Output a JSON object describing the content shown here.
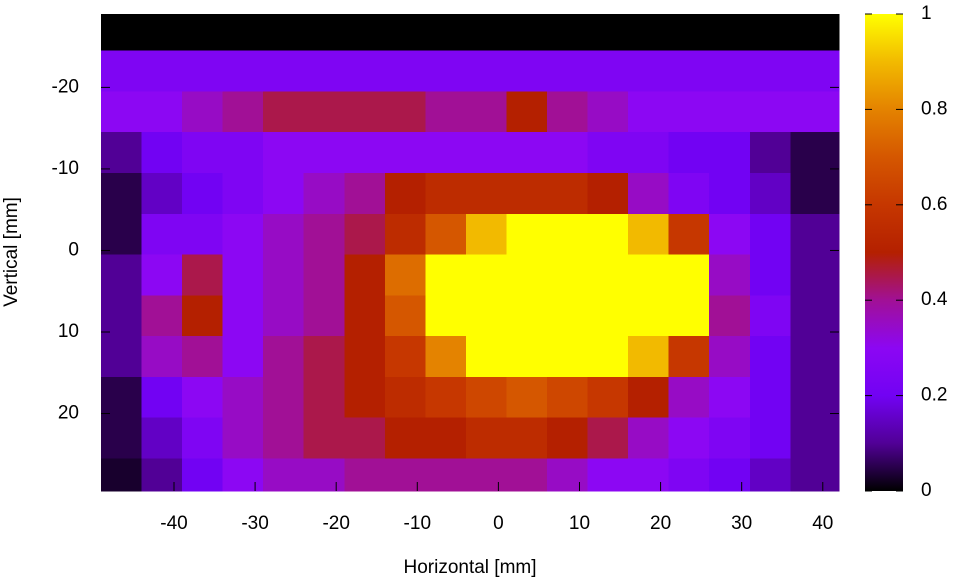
{
  "chart_data": {
    "type": "heatmap",
    "xlabel": "Horizontal [mm]",
    "ylabel": "Vertical [mm]",
    "x": [
      -46.5,
      -41.5,
      -36.5,
      -31.5,
      -26.5,
      -21.5,
      -16.5,
      -11.5,
      -6.5,
      -1.5,
      3.5,
      8.5,
      13.5,
      18.5,
      23.5,
      28.5,
      33.5,
      38.5
    ],
    "y": [
      -27,
      -22,
      -17,
      -12,
      -7,
      -2,
      3,
      8,
      13,
      18,
      23,
      28
    ],
    "z": [
      [
        0,
        0,
        0,
        0,
        0,
        0,
        0,
        0,
        0,
        0,
        0,
        0,
        0,
        0,
        0,
        0,
        0,
        0
      ],
      [
        0.25,
        0.25,
        0.25,
        0.25,
        0.25,
        0.25,
        0.25,
        0.25,
        0.25,
        0.25,
        0.25,
        0.25,
        0.25,
        0.25,
        0.25,
        0.25,
        0.25,
        0.25
      ],
      [
        0.3,
        0.3,
        0.35,
        0.4,
        0.45,
        0.45,
        0.45,
        0.45,
        0.4,
        0.4,
        0.5,
        0.4,
        0.35,
        0.3,
        0.3,
        0.3,
        0.3,
        0.3
      ],
      [
        0.1,
        0.2,
        0.25,
        0.25,
        0.3,
        0.3,
        0.3,
        0.3,
        0.3,
        0.3,
        0.3,
        0.3,
        0.25,
        0.25,
        0.2,
        0.2,
        0.1,
        0.05
      ],
      [
        0.05,
        0.15,
        0.2,
        0.25,
        0.3,
        0.35,
        0.4,
        0.5,
        0.55,
        0.55,
        0.55,
        0.55,
        0.5,
        0.35,
        0.25,
        0.2,
        0.15,
        0.05
      ],
      [
        0.05,
        0.25,
        0.25,
        0.3,
        0.35,
        0.4,
        0.45,
        0.55,
        0.7,
        0.9,
        1,
        1,
        1,
        0.9,
        0.6,
        0.3,
        0.2,
        0.1
      ],
      [
        0.1,
        0.3,
        0.45,
        0.3,
        0.35,
        0.4,
        0.5,
        0.75,
        1,
        1,
        1,
        1,
        1,
        1,
        1,
        0.35,
        0.2,
        0.1
      ],
      [
        0.1,
        0.4,
        0.5,
        0.3,
        0.35,
        0.4,
        0.5,
        0.7,
        1,
        1,
        1,
        1,
        1,
        1,
        1,
        0.4,
        0.25,
        0.1
      ],
      [
        0.1,
        0.35,
        0.4,
        0.3,
        0.4,
        0.45,
        0.5,
        0.6,
        0.8,
        1,
        1,
        1,
        1,
        0.9,
        0.6,
        0.35,
        0.2,
        0.1
      ],
      [
        0.05,
        0.2,
        0.3,
        0.35,
        0.4,
        0.45,
        0.5,
        0.55,
        0.6,
        0.65,
        0.7,
        0.65,
        0.6,
        0.5,
        0.35,
        0.3,
        0.2,
        0.1
      ],
      [
        0.05,
        0.15,
        0.25,
        0.35,
        0.4,
        0.45,
        0.45,
        0.5,
        0.5,
        0.55,
        0.55,
        0.5,
        0.45,
        0.35,
        0.3,
        0.25,
        0.2,
        0.1
      ],
      [
        0.03,
        0.1,
        0.2,
        0.3,
        0.35,
        0.35,
        0.4,
        0.4,
        0.4,
        0.4,
        0.4,
        0.35,
        0.3,
        0.3,
        0.25,
        0.2,
        0.15,
        0.1
      ]
    ],
    "xlim": [
      -49,
      42
    ],
    "xticks": [
      -40,
      -30,
      -20,
      -10,
      0,
      10,
      20,
      30,
      40
    ],
    "ylim": [
      -29,
      29.5
    ],
    "y_reversed": true,
    "yticks": [
      -20,
      -10,
      0,
      10,
      20
    ],
    "cblim": [
      0,
      1
    ],
    "cbticks": [
      0,
      0.2,
      0.4,
      0.6,
      0.8,
      1
    ],
    "colormap": [
      "#000000",
      "#510096",
      "#7202f3",
      "#8c07f3",
      "#a11096",
      "#b42000",
      "#c63700",
      "#d55700",
      "#e48300",
      "#f2ba00",
      "#ffff00"
    ]
  }
}
